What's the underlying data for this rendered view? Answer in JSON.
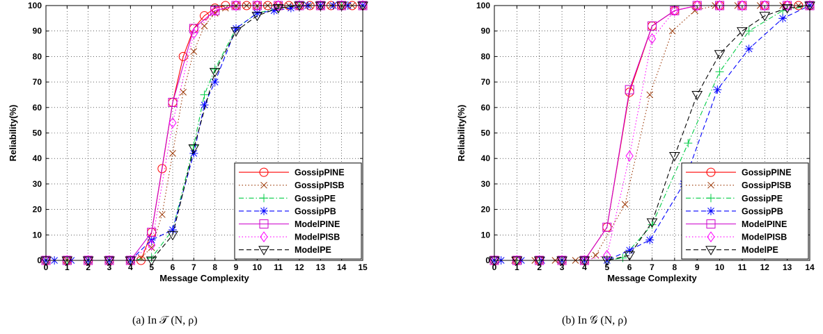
{
  "captions": [
    "(a) In 𝒯 (N, ρ)",
    "(b) In 𝒢 (N, ρ)"
  ],
  "chart_data": [
    {
      "type": "line",
      "xlabel": "Message Complexity",
      "ylabel": "Reliability(%)",
      "xlim": [
        0,
        15
      ],
      "ylim": [
        0,
        100
      ],
      "xticks": [
        0,
        1,
        2,
        3,
        4,
        5,
        6,
        7,
        8,
        9,
        10,
        11,
        12,
        13,
        14,
        15
      ],
      "yticks": [
        0,
        10,
        20,
        30,
        40,
        50,
        60,
        70,
        80,
        90,
        100
      ],
      "grid": true,
      "legend_position": "bottom-right",
      "series": [
        {
          "name": "GossipPINE",
          "color": "#ff0000",
          "marker": "circle",
          "dash": "solid",
          "x": [
            0,
            1,
            2,
            3,
            4,
            4.5,
            5,
            5.5,
            6,
            6.5,
            7,
            7.5,
            8,
            8.5,
            9,
            9.5,
            10,
            10.5,
            11,
            11.5,
            12,
            12.5,
            13,
            13.5,
            14,
            14.5,
            15
          ],
          "y": [
            0,
            0,
            0,
            0,
            0,
            0,
            11,
            36,
            62,
            80,
            91,
            96,
            99,
            100,
            100,
            100,
            100,
            100,
            100,
            100,
            100,
            100,
            100,
            100,
            100,
            100,
            100
          ]
        },
        {
          "name": "GossipPISB",
          "color": "#993300",
          "marker": "x",
          "dash": "dot",
          "x": [
            0,
            1,
            2,
            3,
            4,
            4.5,
            5,
            5.5,
            6,
            6.5,
            7,
            7.5,
            8,
            8.5,
            9,
            9.5,
            10,
            10.5,
            11,
            11.5,
            12,
            12.5,
            13,
            13.5,
            14,
            14.5,
            15
          ],
          "y": [
            0,
            0,
            0,
            0,
            0,
            1,
            5,
            18,
            42,
            66,
            82,
            92,
            97,
            99,
            100,
            100,
            100,
            100,
            100,
            100,
            100,
            100,
            100,
            100,
            100,
            100,
            100
          ]
        },
        {
          "name": "GossipPE",
          "color": "#00cc44",
          "marker": "plus",
          "dash": "dashdot",
          "x": [
            0,
            1,
            2,
            3,
            4,
            5,
            6,
            7,
            7.5,
            8,
            9,
            10,
            11,
            12,
            13,
            14,
            15
          ],
          "y": [
            0,
            0,
            0,
            0,
            0,
            1,
            12,
            45,
            65,
            75,
            91,
            97,
            99,
            100,
            100,
            100,
            100
          ]
        },
        {
          "name": "GossipPB",
          "color": "#0000ff",
          "marker": "star",
          "dash": "dash",
          "x": [
            0,
            0.4,
            1.2,
            2,
            3,
            4,
            5,
            6,
            7,
            7.5,
            8,
            9,
            10,
            10.8,
            11.6,
            12.4,
            13,
            13.6,
            14.3,
            15
          ],
          "y": [
            0,
            0,
            0,
            0,
            0,
            0,
            8,
            12,
            42,
            61,
            70,
            91,
            97,
            98,
            99,
            100,
            100,
            100,
            100,
            100
          ]
        },
        {
          "name": "ModelPINE",
          "color": "#cc00cc",
          "marker": "square",
          "dash": "solid",
          "x": [
            0,
            1,
            2,
            3,
            4,
            5,
            6,
            7,
            8,
            9,
            10,
            11,
            12,
            13,
            14,
            15
          ],
          "y": [
            0,
            0,
            0,
            0,
            0,
            11,
            62,
            91,
            98,
            100,
            100,
            100,
            100,
            100,
            100,
            100
          ]
        },
        {
          "name": "ModelPISB",
          "color": "#ff00ff",
          "marker": "diamond",
          "dash": "dot",
          "x": [
            0,
            1,
            2,
            3,
            4,
            5,
            6,
            7,
            8,
            9,
            10,
            11,
            12,
            13,
            14,
            15
          ],
          "y": [
            0,
            0,
            0,
            0,
            0,
            6,
            54,
            89,
            98,
            100,
            100,
            100,
            100,
            100,
            100,
            100
          ]
        },
        {
          "name": "ModelPE",
          "color": "#000000",
          "marker": "triangle-down",
          "dash": "dash",
          "x": [
            0,
            1,
            2,
            3,
            4,
            5,
            6,
            7,
            8,
            9,
            10,
            11,
            12,
            13,
            14,
            15
          ],
          "y": [
            0,
            0,
            0,
            0,
            0,
            0,
            10,
            44,
            74,
            90,
            96,
            99,
            100,
            100,
            100,
            100
          ]
        }
      ]
    },
    {
      "type": "line",
      "xlabel": "Message Complexity",
      "ylabel": "Reliability(%)",
      "xlim": [
        0,
        14
      ],
      "ylim": [
        0,
        100
      ],
      "xticks": [
        0,
        1,
        2,
        3,
        4,
        5,
        6,
        7,
        8,
        9,
        10,
        11,
        12,
        13,
        14
      ],
      "yticks": [
        0,
        10,
        20,
        30,
        40,
        50,
        60,
        70,
        80,
        90,
        100
      ],
      "grid": true,
      "legend_position": "bottom-right",
      "series": [
        {
          "name": "GossipPINE",
          "color": "#ff0000",
          "marker": "circle",
          "dash": "solid",
          "x": [
            0,
            1,
            2,
            3,
            4,
            5,
            6,
            7,
            8,
            9,
            10,
            11,
            12,
            13,
            13.5,
            14
          ],
          "y": [
            0,
            0,
            0,
            0,
            0,
            13,
            66,
            92,
            98,
            100,
            100,
            100,
            100,
            100,
            100,
            100
          ]
        },
        {
          "name": "GossipPISB",
          "color": "#993300",
          "marker": "x",
          "dash": "dot",
          "x": [
            0,
            0.9,
            1.8,
            2.7,
            3.6,
            4.5,
            5.8,
            6.9,
            7.9,
            8.9,
            9.8,
            10.8,
            11.8,
            12.8,
            13.5,
            14
          ],
          "y": [
            0,
            0,
            0,
            0,
            0,
            2,
            22,
            65,
            90,
            98,
            100,
            100,
            100,
            100,
            100,
            100
          ]
        },
        {
          "name": "GossipPE",
          "color": "#00cc44",
          "marker": "plus",
          "dash": "dashdot",
          "x": [
            0,
            1,
            2,
            3,
            4,
            5,
            5.7,
            7,
            8.6,
            10,
            11.3,
            12.8,
            14
          ],
          "y": [
            0,
            0,
            0,
            0,
            0,
            0,
            1,
            14,
            46,
            74,
            90,
            98,
            100
          ]
        },
        {
          "name": "GossipPB",
          "color": "#0000ff",
          "marker": "star",
          "dash": "dash",
          "x": [
            0,
            0.3,
            1.2,
            2.1,
            3,
            4,
            5,
            6,
            6.9,
            8.4,
            9.9,
            11.3,
            12.8,
            14
          ],
          "y": [
            0,
            0,
            0,
            0,
            0,
            0,
            0,
            4,
            8,
            30,
            67,
            83,
            95,
            100
          ]
        },
        {
          "name": "ModelPINE",
          "color": "#cc00cc",
          "marker": "square",
          "dash": "solid",
          "x": [
            0,
            1,
            2,
            3,
            4,
            5,
            6,
            7,
            8,
            9,
            10,
            11,
            12,
            13,
            14
          ],
          "y": [
            0,
            0,
            0,
            0,
            0,
            13,
            67,
            92,
            98,
            100,
            100,
            100,
            100,
            100,
            100
          ]
        },
        {
          "name": "ModelPISB",
          "color": "#ff00ff",
          "marker": "diamond",
          "dash": "dot",
          "x": [
            0,
            1,
            2,
            3,
            4,
            5,
            6,
            7,
            8,
            9,
            10,
            11,
            12,
            13,
            14
          ],
          "y": [
            0,
            0,
            0,
            0,
            0,
            2,
            41,
            87,
            98,
            100,
            100,
            100,
            100,
            100,
            100
          ]
        },
        {
          "name": "ModelPE",
          "color": "#000000",
          "marker": "triangle-down",
          "dash": "dash",
          "x": [
            0,
            1,
            2,
            3,
            4,
            5,
            6,
            7,
            8,
            9,
            10,
            11,
            12,
            13,
            14
          ],
          "y": [
            0,
            0,
            0,
            0,
            0,
            0,
            2,
            15,
            41,
            65,
            81,
            90,
            96,
            99,
            100
          ]
        }
      ]
    }
  ]
}
